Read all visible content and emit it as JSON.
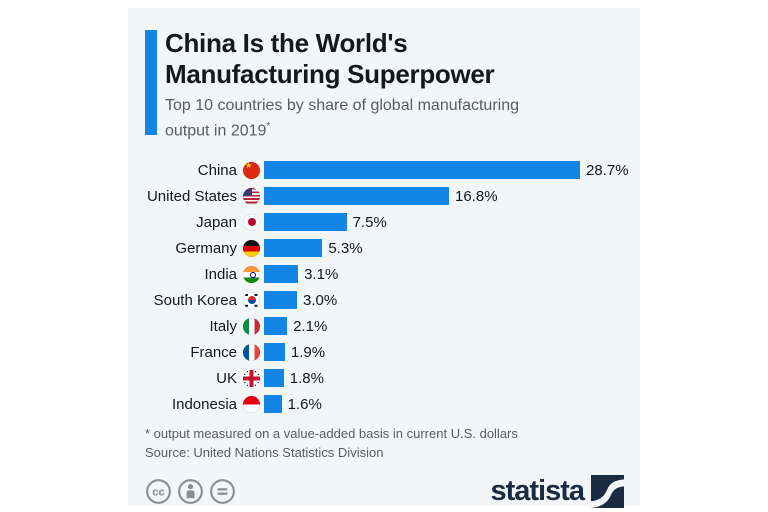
{
  "header": {
    "title_line1": "China Is the World's",
    "title_line2": "Manufacturing Superpower",
    "subtitle": "Top 10 countries by share of global manufacturing output in 2019",
    "subtitle_note_marker": "*",
    "accent_color": "#1385e4"
  },
  "chart_data": {
    "type": "bar",
    "orientation": "horizontal",
    "title": "China Is the World's Manufacturing Superpower",
    "subtitle": "Top 10 countries by share of global manufacturing output in 2019*",
    "categories": [
      "China",
      "United States",
      "Japan",
      "Germany",
      "India",
      "South Korea",
      "Italy",
      "France",
      "UK",
      "Indonesia"
    ],
    "values": [
      28.7,
      16.8,
      7.5,
      5.3,
      3.1,
      3.0,
      2.1,
      1.9,
      1.8,
      1.6
    ],
    "value_labels": [
      "28.7%",
      "16.8%",
      "7.5%",
      "5.3%",
      "3.1%",
      "3.0%",
      "2.1%",
      "1.9%",
      "1.8%",
      "1.6%"
    ],
    "flag_icons": [
      "flag-china-icon",
      "flag-united-states-icon",
      "flag-japan-icon",
      "flag-germany-icon",
      "flag-india-icon",
      "flag-south-korea-icon",
      "flag-italy-icon",
      "flag-france-icon",
      "flag-uk-icon",
      "flag-indonesia-icon"
    ],
    "bar_color": "#1385e4",
    "xlim": [
      0,
      28.7
    ],
    "grid": "off",
    "legend": "none",
    "unit": "percent"
  },
  "footer": {
    "footnote": "* output measured on a value-added basis in current U.S. dollars",
    "source": "Source: United Nations Statistics Division",
    "license_icons": [
      "cc",
      "by",
      "nd"
    ],
    "brand": "statista",
    "brand_color": "#1a2b42"
  }
}
